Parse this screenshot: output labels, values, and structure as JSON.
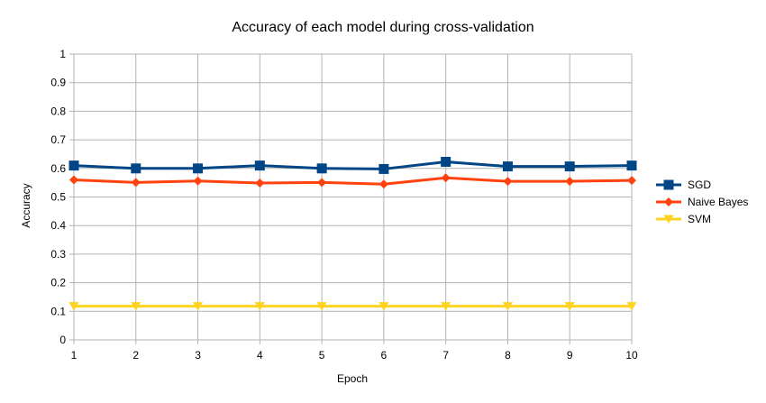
{
  "chart_data": {
    "type": "line",
    "title": "Accuracy of each model during cross-validation",
    "xlabel": "Epoch",
    "ylabel": "Accuracy",
    "x": [
      1,
      2,
      3,
      4,
      5,
      6,
      7,
      8,
      9,
      10
    ],
    "xlim": [
      1,
      10
    ],
    "ylim": [
      0,
      1
    ],
    "yticks": [
      "0",
      "0.1",
      "0.2",
      "0.3",
      "0.4",
      "0.5",
      "0.6",
      "0.7",
      "0.8",
      "0.9",
      "1"
    ],
    "grid": true,
    "legend_position": "right",
    "series": [
      {
        "name": "SGD",
        "color": "#004586",
        "marker": "square",
        "values": [
          0.61,
          0.6,
          0.6,
          0.61,
          0.6,
          0.598,
          0.623,
          0.607,
          0.607,
          0.61
        ]
      },
      {
        "name": "Naive Bayes",
        "color": "#ff420e",
        "marker": "diamond",
        "values": [
          0.56,
          0.551,
          0.556,
          0.549,
          0.551,
          0.545,
          0.567,
          0.555,
          0.555,
          0.558
        ]
      },
      {
        "name": "SVM",
        "color": "#ffd320",
        "marker": "triangle-down",
        "values": [
          0.118,
          0.118,
          0.118,
          0.118,
          0.118,
          0.118,
          0.118,
          0.118,
          0.118,
          0.118
        ]
      }
    ]
  }
}
